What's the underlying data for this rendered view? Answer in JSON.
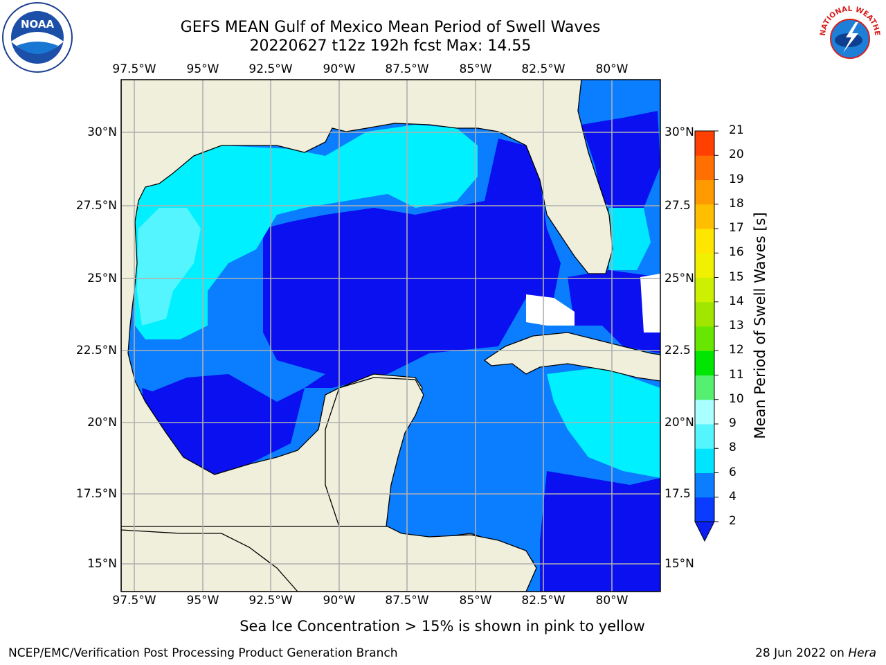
{
  "title": {
    "line1": "GEFS MEAN Gulf of Mexico Mean Period of Swell Waves",
    "line2": "20220627 t12z 192h fcst   Max: 14.55"
  },
  "logos": {
    "noaa_text": "NOAA",
    "nws_text": "NATIONAL WEATHER SERVICE"
  },
  "map": {
    "lon_labels": [
      "97.5°W",
      "95°W",
      "92.5°W",
      "90°W",
      "87.5°W",
      "85°W",
      "82.5°W",
      "80°W"
    ],
    "lat_labels_left": [
      "30°N",
      "27.5°N",
      "25°N",
      "22.5°N",
      "20°N",
      "17.5°N",
      "15°N"
    ],
    "lat_labels_right": [
      "30°N",
      "27.5",
      "25°N",
      "22.5",
      "20°N",
      "17.5",
      "15°N"
    ],
    "extent": {
      "lon": [
        -98,
        -78.3
      ],
      "lat": [
        14,
        31.8
      ]
    },
    "colors": {
      "land": "#efefdc",
      "coast": "#000000",
      "grid": "#b0b0b0"
    }
  },
  "colorbar": {
    "title": "Mean Period of Swell Waves [s]",
    "ticks": [
      "2",
      "4",
      "6",
      "8",
      "9",
      "10",
      "11",
      "12",
      "13",
      "14",
      "15",
      "16",
      "17",
      "18",
      "19",
      "20",
      "21"
    ],
    "colors": [
      "#0a3cff",
      "#0b7dff",
      "#00e5ff",
      "#55f5ff",
      "#aaffff",
      "#55f070",
      "#00e600",
      "#66e600",
      "#a0e600",
      "#ccf000",
      "#f0f000",
      "#ffe600",
      "#ffbf00",
      "#ff9a00",
      "#ff7000",
      "#ff4000",
      "#ff1500"
    ],
    "extend_color": "#0b20f0"
  },
  "note": "Sea Ice Concentration > 15% is shown in pink to yellow",
  "footer": {
    "left": "NCEP/EMC/Verification Post Processing Product Generation Branch",
    "right_prefix": "28 Jun 2022 on ",
    "right_host": "Hera"
  }
}
